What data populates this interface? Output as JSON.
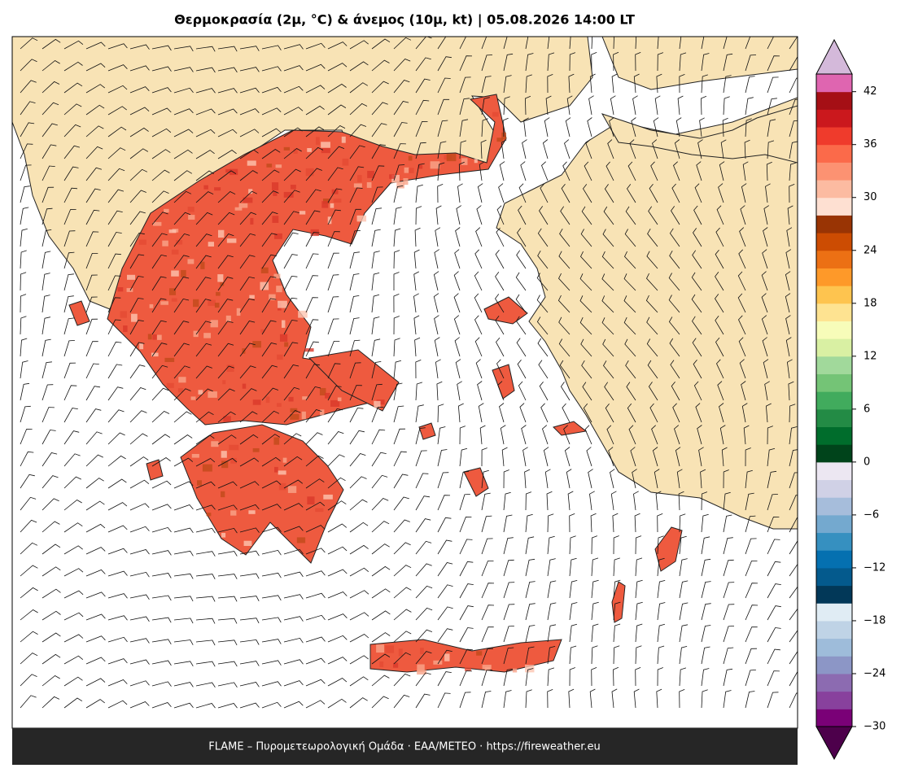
{
  "title": "Θερμοκρασία (2μ, °C) & άνεμος (10μ, kt)  |  05.08.2026 14:00 LT",
  "footer": "FLAME – Πυρομετεωρολογική Ομάδα · ΕΑΑ/METEO · https://fireweather.eu",
  "colorbar": {
    "lim": [
      -30,
      44
    ],
    "ticks": [
      {
        "value": -30,
        "label": "−30"
      },
      {
        "value": -24,
        "label": "−24"
      },
      {
        "value": -18,
        "label": "−18"
      },
      {
        "value": -12,
        "label": "−12"
      },
      {
        "value": -6,
        "label": "−6"
      },
      0,
      6,
      12,
      18,
      24,
      30,
      36,
      42
    ],
    "colors": [
      "#7a0177",
      "#88419d",
      "#8c6bb1",
      "#8c96c6",
      "#9ebcda",
      "#bfd3e6",
      "#e0ecf4",
      "#023858",
      "#045a8d",
      "#0570b0",
      "#3690c0",
      "#74a9cf",
      "#a6bddb",
      "#d0d1e6",
      "#ece7f2",
      "#00441b",
      "#006d2c",
      "#238b45",
      "#41ab5d",
      "#74c476",
      "#a1d99b",
      "#d9f0a3",
      "#f7fcb9",
      "#fee391",
      "#fec44f",
      "#fe9929",
      "#ec7014",
      "#cc4c02",
      "#993404",
      "#fee0d2",
      "#fcbba1",
      "#fc9272",
      "#fb6a4a",
      "#ef3b2c",
      "#cb181d",
      "#a50f15",
      "#df65b0"
    ],
    "under_color": "#4d004b",
    "over_color": "#d4b9da"
  }
}
